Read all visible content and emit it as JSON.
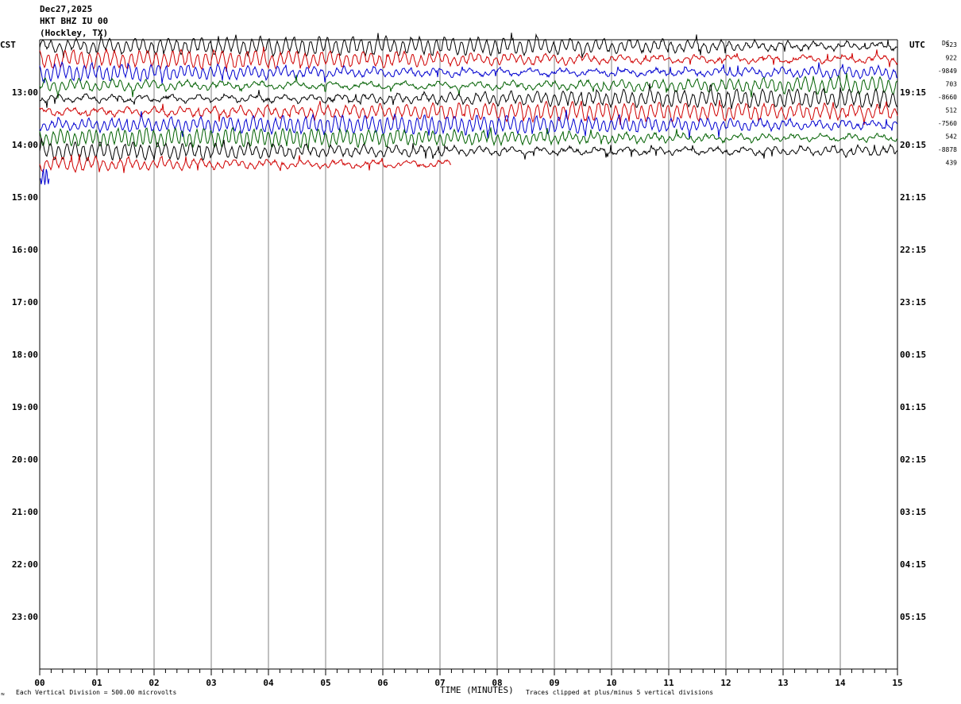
{
  "header": {
    "date": "Dec27,2025",
    "station": "HKT BHZ IU 00",
    "location": "(Hockley, TX)"
  },
  "left_zone": "CST",
  "right_zone": "UTC",
  "dc_label": "DC",
  "footer": {
    "scale_note": "Each Vertical Division =  500.00 microvolts",
    "xlabel": "TIME (MINUTES)",
    "clip_note": "Traces clipped at plus/minus 5 vertical divisions",
    "corner_mark": "≈"
  },
  "colors": {
    "trace_cycle": [
      "#000000",
      "#d00000",
      "#0000d0",
      "#006000"
    ],
    "grid": "#808080"
  },
  "chart_data": {
    "type": "line",
    "title": "HKT BHZ IU 00",
    "xlabel": "TIME (MINUTES)",
    "xlim": [
      0,
      15
    ],
    "x_ticks": [
      "00",
      "01",
      "02",
      "03",
      "04",
      "05",
      "06",
      "07",
      "08",
      "09",
      "10",
      "11",
      "12",
      "13",
      "14",
      "15"
    ],
    "left_hour_labels": [
      "13:00",
      "14:00",
      "15:00",
      "16:00",
      "17:00",
      "18:00",
      "19:00",
      "20:00",
      "21:00",
      "22:00",
      "23:00"
    ],
    "right_hour_labels": [
      "19:15",
      "20:15",
      "21:15",
      "22:15",
      "23:15",
      "00:15",
      "01:15",
      "02:15",
      "03:15",
      "04:15",
      "05:15"
    ],
    "dc_offsets": [
      "323",
      "922",
      "-9849",
      "703",
      "-8660",
      "512",
      "-7560",
      "542",
      "-8878",
      "439"
    ],
    "traces_per_hour": 4,
    "minutes_per_trace": 15,
    "first_trace_hour": "12:00",
    "series": [
      {
        "start": "12:00",
        "end_minute": 15
      },
      {
        "start": "12:15",
        "end_minute": 15
      },
      {
        "start": "12:30",
        "end_minute": 15
      },
      {
        "start": "12:45",
        "end_minute": 15
      },
      {
        "start": "13:00",
        "end_minute": 15
      },
      {
        "start": "13:15",
        "end_minute": 15
      },
      {
        "start": "13:30",
        "end_minute": 15
      },
      {
        "start": "13:45",
        "end_minute": 15
      },
      {
        "start": "14:00",
        "end_minute": 15
      },
      {
        "start": "14:15",
        "end_minute": 7.2
      },
      {
        "start": "14:30",
        "end_minute": 0.1
      }
    ]
  }
}
